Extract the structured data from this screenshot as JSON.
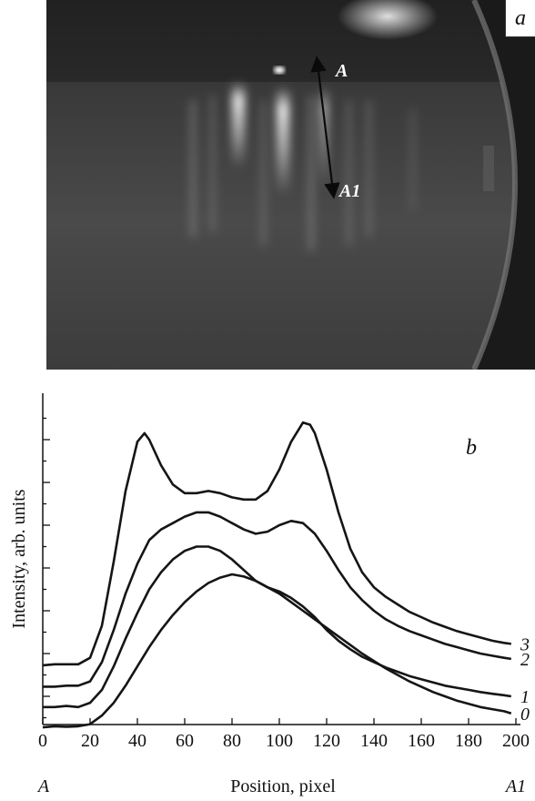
{
  "panel_a": {
    "label": "a",
    "marker_top": "A",
    "marker_bottom": "A1"
  },
  "chart_data": {
    "type": "line",
    "panel_label": "b",
    "xlabel": "Position, pixel",
    "ylabel": "Intensity, arb. units",
    "x_start_label": "A",
    "x_end_label": "A1",
    "xlim": [
      0,
      200
    ],
    "xticks": [
      0,
      20,
      40,
      60,
      80,
      100,
      120,
      140,
      160,
      180,
      200
    ],
    "grid": false,
    "series": [
      {
        "name": "0",
        "x": [
          0,
          5,
          10,
          15,
          20,
          25,
          30,
          35,
          40,
          45,
          50,
          55,
          60,
          65,
          70,
          75,
          80,
          85,
          90,
          95,
          100,
          105,
          110,
          115,
          120,
          125,
          130,
          135,
          140,
          145,
          150,
          155,
          160,
          165,
          170,
          175,
          180,
          185,
          190,
          195,
          198
        ],
        "y": [
          0.55,
          0.6,
          0.58,
          0.6,
          0.7,
          1.1,
          1.7,
          2.5,
          3.4,
          4.3,
          5.1,
          5.8,
          6.4,
          6.9,
          7.3,
          7.55,
          7.7,
          7.6,
          7.4,
          7.1,
          6.8,
          6.4,
          6.0,
          5.6,
          5.2,
          4.8,
          4.4,
          4.0,
          3.65,
          3.3,
          3.0,
          2.7,
          2.45,
          2.2,
          2.0,
          1.8,
          1.65,
          1.5,
          1.4,
          1.3,
          1.2
        ]
      },
      {
        "name": "1",
        "x": [
          0,
          5,
          10,
          15,
          20,
          25,
          30,
          35,
          40,
          45,
          50,
          55,
          60,
          65,
          70,
          75,
          80,
          85,
          90,
          95,
          100,
          105,
          110,
          115,
          120,
          125,
          130,
          135,
          140,
          145,
          150,
          155,
          160,
          165,
          170,
          175,
          180,
          185,
          190,
          195,
          198
        ],
        "y": [
          1.5,
          1.5,
          1.55,
          1.5,
          1.7,
          2.3,
          3.4,
          4.7,
          5.9,
          7.0,
          7.8,
          8.4,
          8.8,
          9.0,
          9.0,
          8.8,
          8.4,
          7.9,
          7.4,
          7.1,
          6.9,
          6.6,
          6.2,
          5.7,
          5.1,
          4.6,
          4.2,
          3.85,
          3.6,
          3.35,
          3.15,
          2.95,
          2.8,
          2.65,
          2.5,
          2.4,
          2.3,
          2.2,
          2.12,
          2.05,
          2.0
        ]
      },
      {
        "name": "2",
        "x": [
          0,
          5,
          10,
          15,
          20,
          25,
          30,
          35,
          40,
          45,
          50,
          55,
          60,
          65,
          70,
          75,
          80,
          85,
          90,
          95,
          100,
          105,
          110,
          115,
          120,
          125,
          130,
          135,
          140,
          145,
          150,
          155,
          160,
          165,
          170,
          175,
          180,
          185,
          190,
          195,
          198
        ],
        "y": [
          2.45,
          2.45,
          2.5,
          2.5,
          2.7,
          3.6,
          5.1,
          6.8,
          8.2,
          9.3,
          9.8,
          10.1,
          10.4,
          10.6,
          10.6,
          10.4,
          10.1,
          9.8,
          9.6,
          9.7,
          10.0,
          10.2,
          10.1,
          9.6,
          8.8,
          7.9,
          7.1,
          6.5,
          6.0,
          5.6,
          5.3,
          5.05,
          4.85,
          4.65,
          4.45,
          4.3,
          4.15,
          4.0,
          3.9,
          3.8,
          3.75
        ]
      },
      {
        "name": "3",
        "x": [
          0,
          5,
          10,
          15,
          20,
          25,
          30,
          35,
          40,
          43,
          45,
          50,
          55,
          60,
          65,
          70,
          75,
          80,
          85,
          90,
          95,
          100,
          105,
          110,
          113,
          115,
          120,
          125,
          130,
          135,
          140,
          145,
          150,
          155,
          160,
          165,
          170,
          175,
          180,
          185,
          190,
          195,
          198
        ],
        "y": [
          3.45,
          3.5,
          3.5,
          3.5,
          3.8,
          5.3,
          8.3,
          11.6,
          13.9,
          14.3,
          14.0,
          12.8,
          11.9,
          11.5,
          11.5,
          11.6,
          11.5,
          11.3,
          11.2,
          11.2,
          11.6,
          12.6,
          13.9,
          14.8,
          14.7,
          14.3,
          12.6,
          10.6,
          8.9,
          7.8,
          7.1,
          6.65,
          6.3,
          5.95,
          5.7,
          5.45,
          5.25,
          5.05,
          4.9,
          4.75,
          4.6,
          4.5,
          4.45
        ]
      }
    ]
  }
}
